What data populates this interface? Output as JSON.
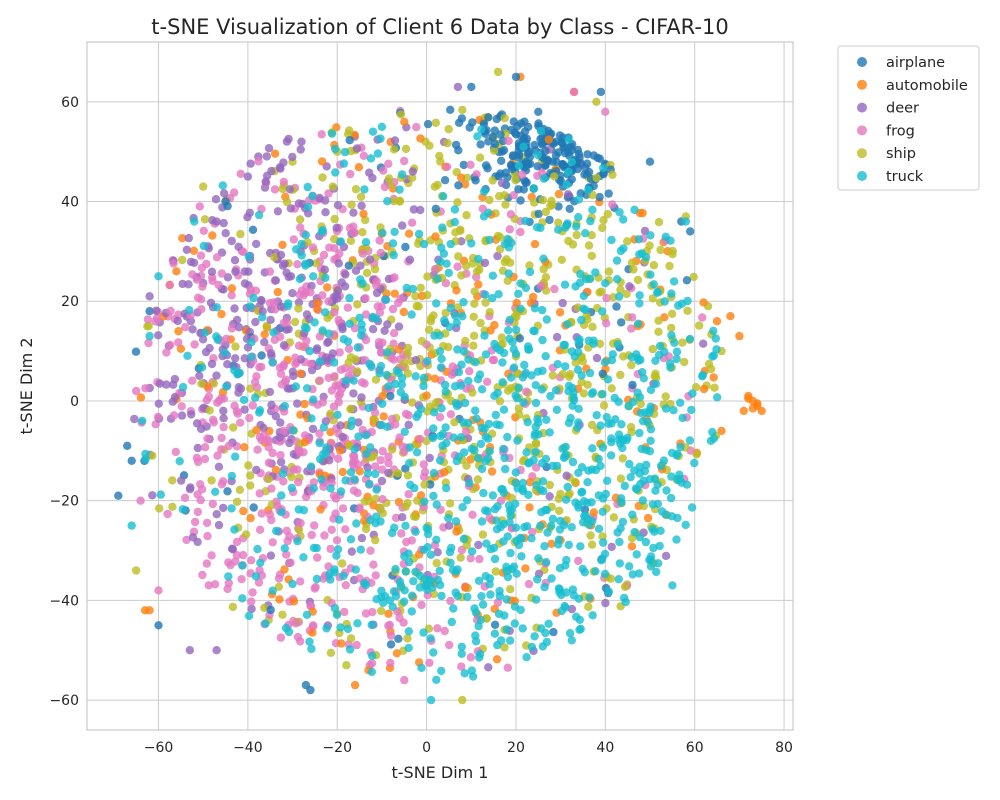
{
  "chart_data": {
    "type": "scatter",
    "title": "t-SNE Visualization of Client 6 Data by Class - CIFAR-10",
    "xlabel": "t-SNE Dim 1",
    "ylabel": "t-SNE Dim 2",
    "xlim": [
      -76,
      82
    ],
    "ylim": [
      -66,
      72
    ],
    "xticks": [
      -60,
      -40,
      -20,
      0,
      20,
      40,
      60,
      80
    ],
    "yticks": [
      -60,
      -40,
      -20,
      0,
      20,
      40,
      60
    ],
    "grid": true,
    "legend_position": "outside top-right",
    "series": [
      {
        "name": "airplane",
        "color": "#1f77b4",
        "main_region": "top cluster",
        "center": [
          30,
          52
        ],
        "spread": [
          10,
          6
        ],
        "extra_points": [
          [
            -67,
            -9
          ],
          [
            -66,
            -12
          ],
          [
            -69,
            -19
          ],
          [
            -62,
            18
          ],
          [
            -26,
            -58
          ],
          [
            -27,
            -57
          ],
          [
            -60,
            -45
          ],
          [
            10,
            63
          ],
          [
            20,
            65
          ],
          [
            25,
            58
          ],
          [
            39,
            62
          ],
          [
            50,
            48
          ],
          [
            57,
            36
          ],
          [
            59,
            34
          ],
          [
            -45,
            40
          ]
        ]
      },
      {
        "name": "automobile",
        "color": "#ff7f0e",
        "main_region": "scattered",
        "center": [
          10,
          0
        ],
        "spread": [
          35,
          30
        ],
        "extra_points": [
          [
            72,
            1
          ],
          [
            73,
            0
          ],
          [
            74,
            -1
          ],
          [
            75,
            -2
          ],
          [
            72,
            0.5
          ],
          [
            74,
            -0.5
          ],
          [
            73,
            -1.5
          ],
          [
            71,
            -2
          ],
          [
            70,
            13
          ],
          [
            68,
            17
          ],
          [
            65,
            16
          ],
          [
            -5,
            56
          ],
          [
            33,
            62
          ],
          [
            21,
            65
          ],
          [
            -63,
            -42
          ],
          [
            -62,
            -42
          ],
          [
            -56,
            26
          ],
          [
            66,
            -6
          ],
          [
            -16,
            -57
          ],
          [
            -13,
            -54
          ]
        ]
      },
      {
        "name": "deer",
        "color": "#9467bd",
        "main_region": "left-upper",
        "center": [
          -35,
          15
        ],
        "spread": [
          20,
          25
        ],
        "extra_points": [
          [
            -62,
            21
          ],
          [
            -28,
            52
          ],
          [
            7,
            63
          ],
          [
            -47,
            -50
          ],
          [
            -53,
            -50
          ],
          [
            -36,
            44
          ],
          [
            -40,
            45
          ]
        ]
      },
      {
        "name": "frog",
        "color": "#e377c2",
        "main_region": "left-center",
        "center": [
          -25,
          -5
        ],
        "spread": [
          22,
          28
        ],
        "extra_points": [
          [
            33,
            62
          ],
          [
            40,
            58
          ],
          [
            -65,
            2
          ],
          [
            -64,
            -20
          ],
          [
            -5,
            -56
          ],
          [
            -60,
            -38
          ]
        ]
      },
      {
        "name": "ship",
        "color": "#bcbd22",
        "main_region": "top and right",
        "center": [
          20,
          10
        ],
        "spread": [
          30,
          30
        ],
        "extra_points": [
          [
            16,
            66
          ],
          [
            8,
            -60
          ],
          [
            38,
            60
          ],
          [
            58,
            37
          ],
          [
            -65,
            -34
          ],
          [
            -50,
            43
          ],
          [
            -30,
            48
          ],
          [
            -20,
            50
          ],
          [
            63,
            19
          ],
          [
            66,
            10
          ]
        ]
      },
      {
        "name": "truck",
        "color": "#17becf",
        "main_region": "right and bottom",
        "center": [
          25,
          -15
        ],
        "spread": [
          30,
          28
        ],
        "extra_points": [
          [
            1,
            -60
          ],
          [
            -60,
            25
          ],
          [
            -52,
            36
          ],
          [
            -12,
            54
          ],
          [
            -10,
            55
          ],
          [
            58,
            36
          ],
          [
            -66,
            -25
          ],
          [
            -62,
            13
          ],
          [
            55,
            -37
          ]
        ]
      }
    ]
  }
}
